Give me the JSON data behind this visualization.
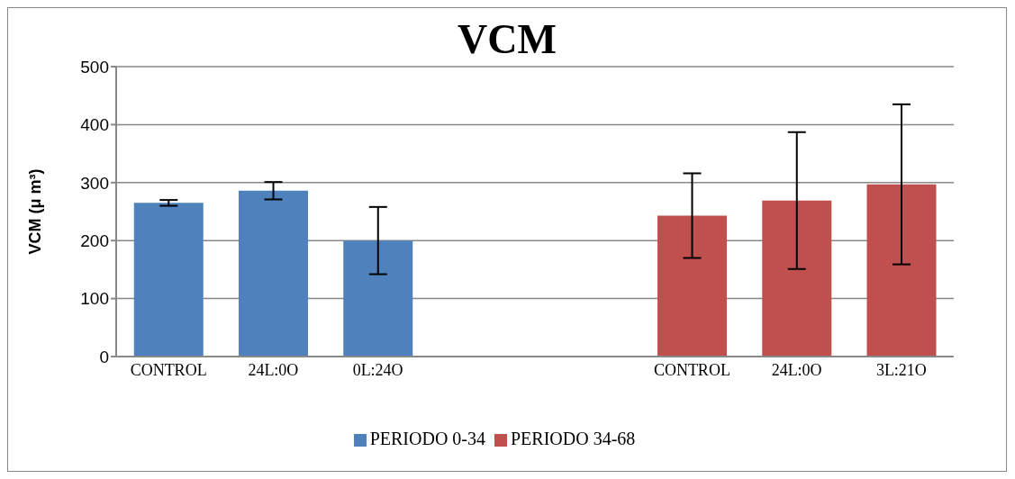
{
  "chart_data": {
    "type": "bar",
    "title": "VCM",
    "ylabel": "VCM (μ m³)",
    "categories": [
      "CONTROL",
      "24L:0O",
      "0L:24O",
      null,
      null,
      "CONTROL",
      "24L:0O",
      "3L:21O"
    ],
    "series": [
      {
        "name": "PERIODO 0-34",
        "color": "#4f81bd",
        "values": [
          265,
          286,
          200,
          null,
          null,
          null,
          null,
          null
        ],
        "errors": [
          5,
          15,
          58,
          null,
          null,
          null,
          null,
          null
        ]
      },
      {
        "name": "PERIODO 34-68",
        "color": "#c0504d",
        "values": [
          null,
          null,
          null,
          null,
          null,
          243,
          269,
          297
        ],
        "errors": [
          null,
          null,
          null,
          null,
          null,
          73,
          118,
          138
        ]
      }
    ],
    "ylim": [
      0,
      500
    ],
    "yticks": [
      0,
      100,
      200,
      300,
      400,
      500
    ],
    "grid": "y",
    "legend": "bottom"
  }
}
